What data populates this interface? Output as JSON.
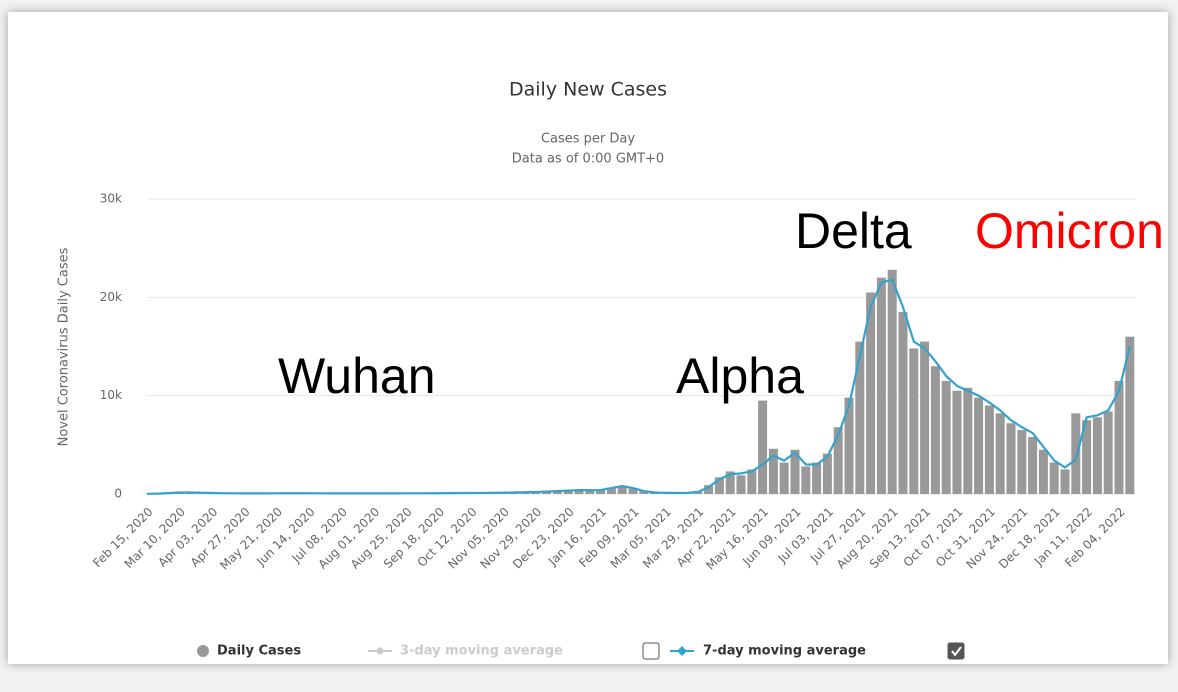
{
  "chart_data": {
    "type": "bar",
    "title": "Daily New Cases",
    "subtitle": [
      "Cases per Day",
      "Data as of 0:00 GMT+0"
    ],
    "y_label": "Novel Coronavirus Daily Cases",
    "annotations": [
      {
        "text": "Wuhan",
        "color": "#000000"
      },
      {
        "text": "Alpha",
        "color": "#000000"
      },
      {
        "text": "Delta",
        "color": "#000000"
      },
      {
        "text": "Omicron",
        "color": "#ff0000"
      }
    ],
    "categories": [
      "Feb 15, 2020",
      null,
      null,
      "Mar 10, 2020",
      null,
      null,
      "Apr 03, 2020",
      null,
      null,
      "Apr 27, 2020",
      null,
      null,
      "May 21, 2020",
      null,
      null,
      "Jun 14, 2020",
      null,
      null,
      "Jul 08, 2020",
      null,
      null,
      "Aug 01, 2020",
      null,
      null,
      "Aug 25, 2020",
      null,
      null,
      "Sep 18, 2020",
      null,
      null,
      "Oct 12, 2020",
      null,
      null,
      "Nov 05, 2020",
      null,
      null,
      "Nov 29, 2020",
      null,
      null,
      "Dec 23, 2020",
      null,
      null,
      "Jan 16, 2021",
      null,
      null,
      "Feb 09, 2021",
      null,
      null,
      "Mar 05, 2021",
      null,
      null,
      "Mar 29, 2021",
      null,
      null,
      "Apr 22, 2021",
      null,
      null,
      "May 16, 2021",
      null,
      null,
      "Jun 09, 2021",
      null,
      null,
      "Jul 03, 2021",
      null,
      null,
      "Jul 27, 2021",
      null,
      null,
      "Aug 20, 2021",
      null,
      null,
      "Sep 13, 2021",
      null,
      null,
      "Oct 07, 2021",
      null,
      null,
      "Oct 31, 2021",
      null,
      null,
      "Nov 24, 2021",
      null,
      null,
      "Dec 18, 2021",
      null,
      null,
      "Jan 11, 2022",
      null,
      null,
      "Feb 04, 2022",
      null
    ],
    "series": [
      {
        "name": "Daily Cases",
        "type": "bar",
        "color": "#999999",
        "values": [
          30,
          50,
          100,
          160,
          170,
          130,
          100,
          80,
          70,
          60,
          60,
          60,
          70,
          80,
          80,
          80,
          70,
          60,
          60,
          60,
          60,
          60,
          60,
          60,
          70,
          70,
          80,
          80,
          90,
          100,
          100,
          110,
          120,
          130,
          150,
          180,
          220,
          260,
          310,
          360,
          420,
          350,
          420,
          650,
          850,
          550,
          280,
          140,
          110,
          100,
          130,
          250,
          900,
          1700,
          2300,
          1900,
          2500,
          9500,
          4600,
          3200,
          4500,
          2800,
          3200,
          4100,
          6800,
          9800,
          15500,
          20500,
          22000,
          22800,
          18500,
          14800,
          15500,
          13000,
          11500,
          10500,
          10800,
          9800,
          9000,
          8200,
          7200,
          6500,
          5800,
          4500,
          3200,
          2500,
          8200,
          7500,
          7800,
          8400,
          11500,
          16000
        ]
      },
      {
        "name": "7-day moving average",
        "type": "line",
        "color": "#33a3cc",
        "values": [
          20,
          40,
          90,
          150,
          160,
          130,
          100,
          80,
          70,
          60,
          60,
          60,
          70,
          80,
          80,
          80,
          70,
          60,
          60,
          60,
          60,
          60,
          60,
          60,
          70,
          70,
          80,
          80,
          90,
          100,
          100,
          110,
          120,
          130,
          150,
          180,
          200,
          250,
          300,
          350,
          400,
          380,
          400,
          600,
          800,
          600,
          300,
          150,
          120,
          100,
          120,
          200,
          700,
          1500,
          2000,
          2100,
          2300,
          3000,
          3900,
          3400,
          4200,
          3000,
          3000,
          3800,
          6000,
          9000,
          14000,
          19000,
          21500,
          21800,
          19000,
          15500,
          14800,
          13500,
          12000,
          11000,
          10500,
          10000,
          9300,
          8500,
          7500,
          6800,
          6200,
          4800,
          3400,
          2700,
          3500,
          7800,
          8000,
          8500,
          10500,
          15000
        ]
      }
    ],
    "inactive_legend": "3-day moving average",
    "ylim": [
      0,
      30000
    ],
    "yticks": [
      0,
      {
        "value": 10000,
        "label": "10k"
      },
      {
        "value": 20000,
        "label": "20k"
      },
      {
        "value": 30000,
        "label": "30k"
      }
    ],
    "grid": true
  }
}
